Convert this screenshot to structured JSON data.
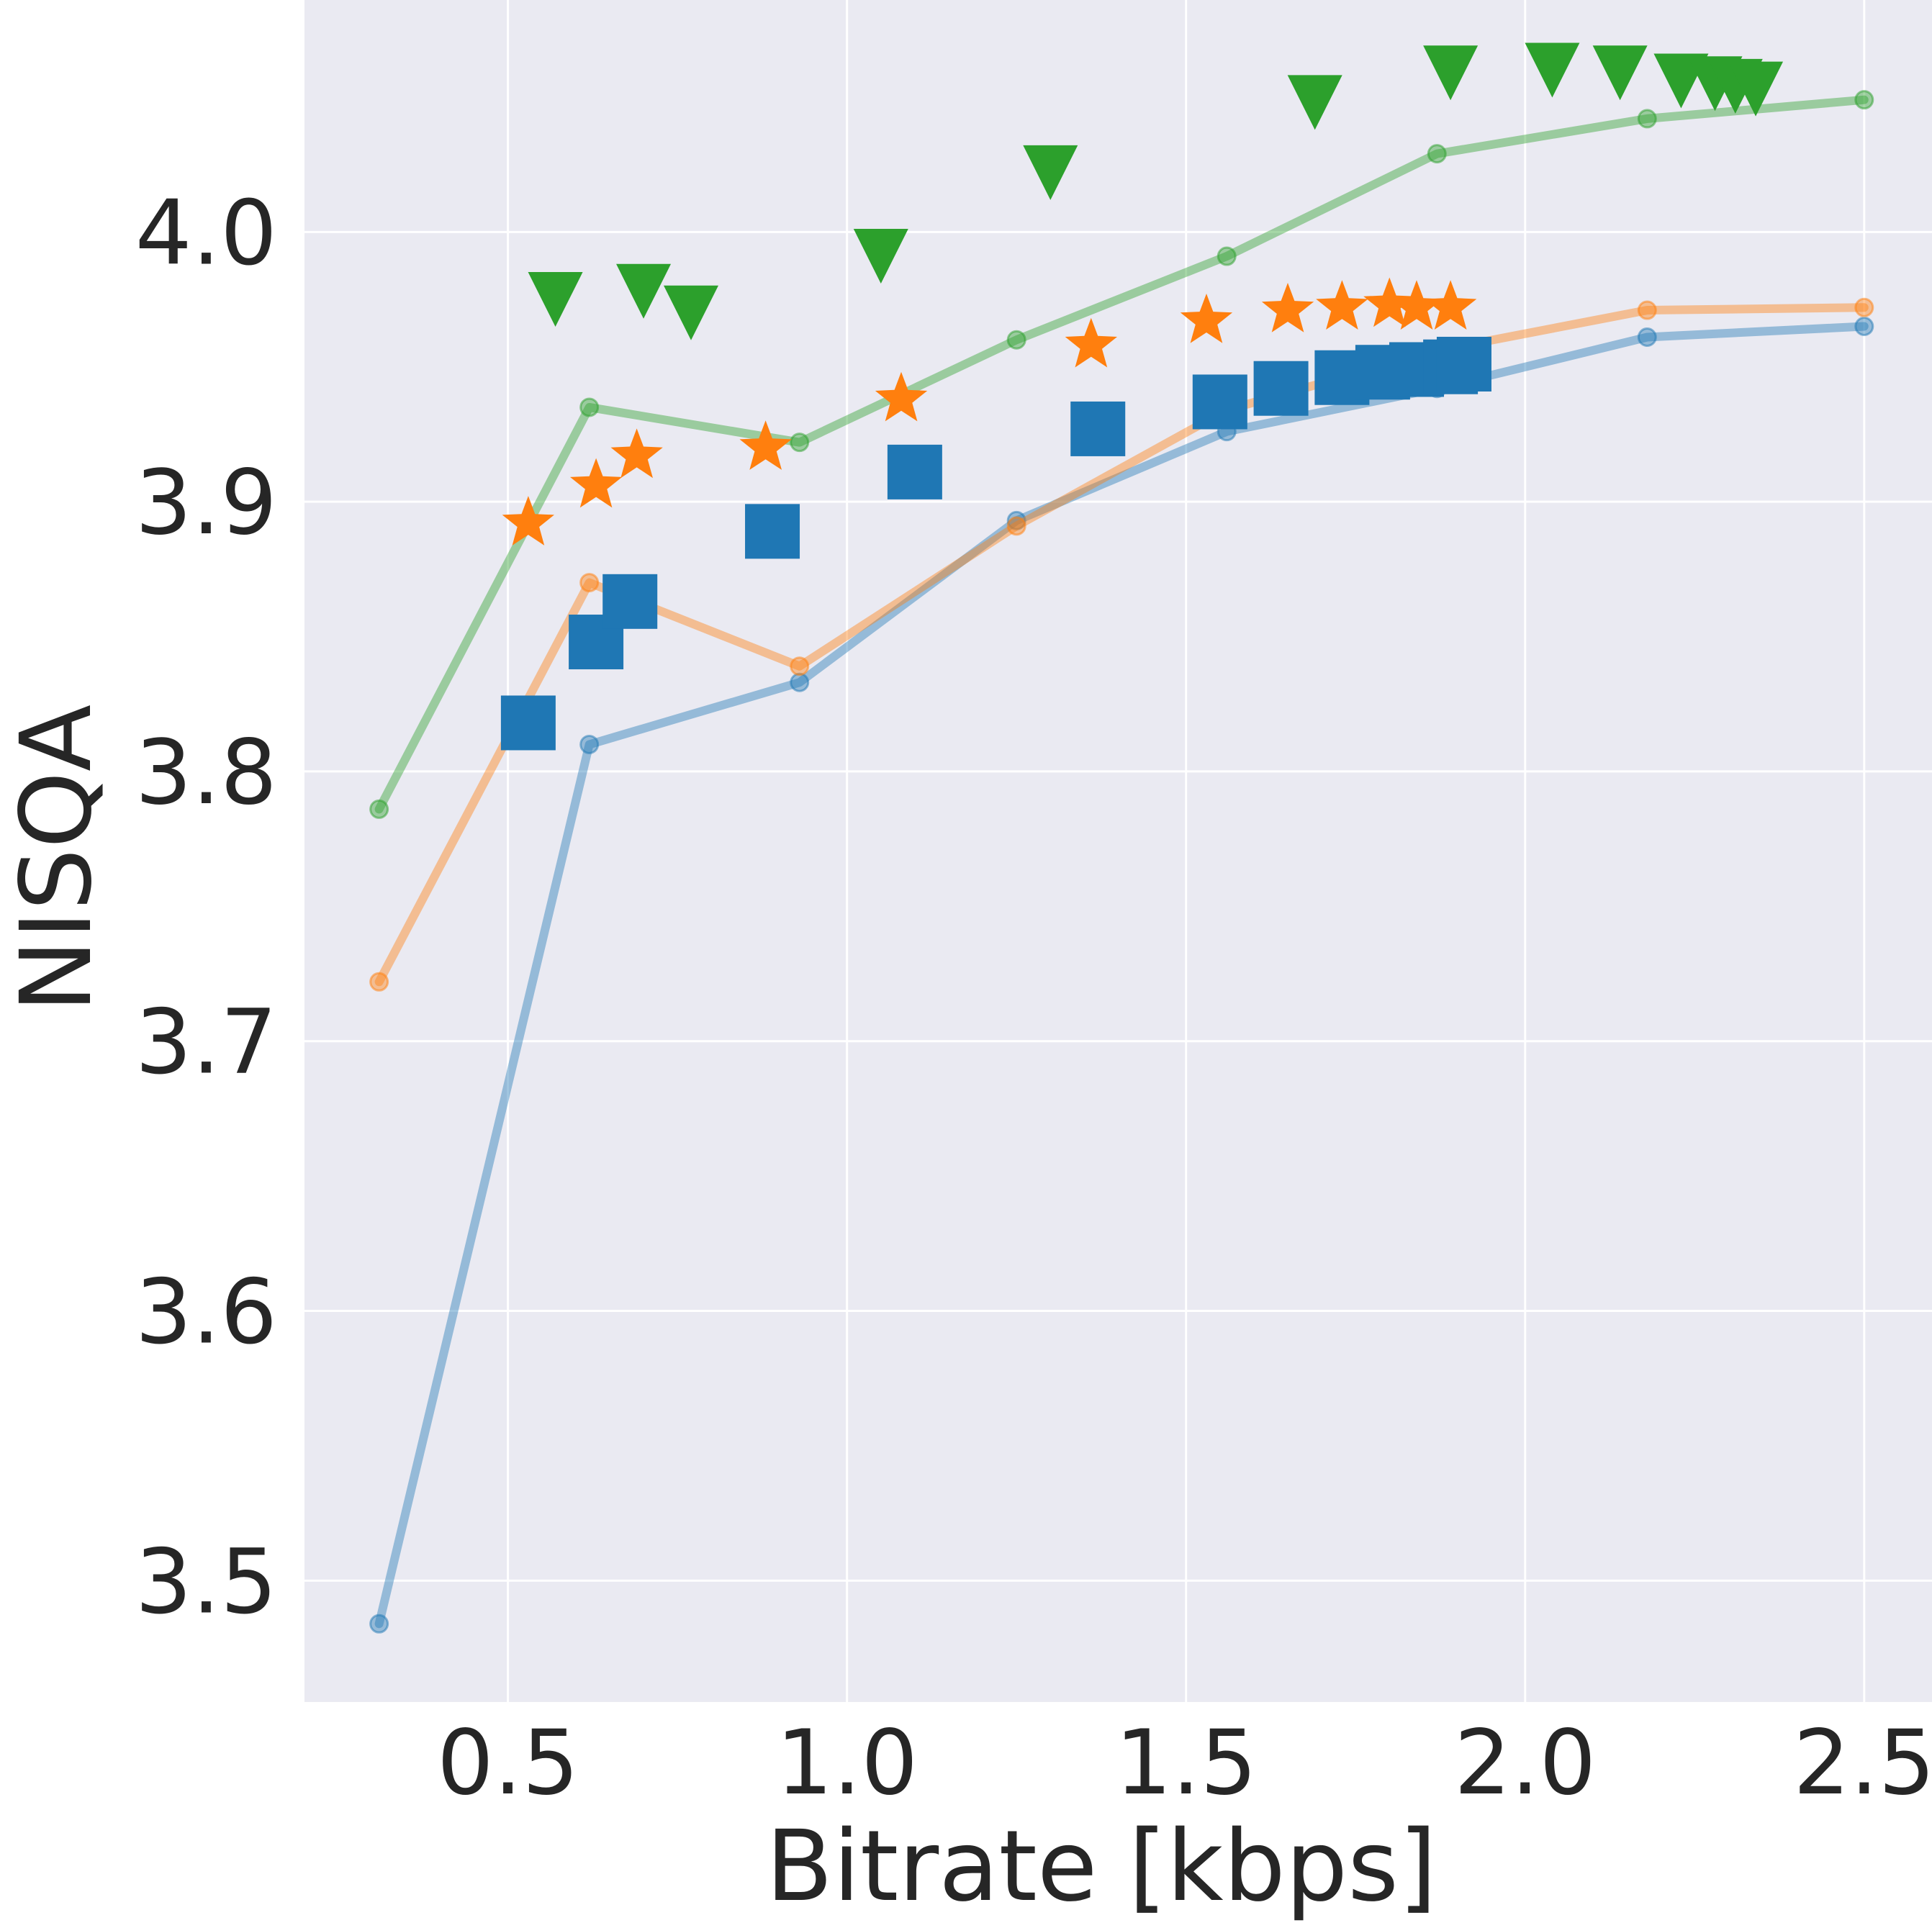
{
  "chart_data": {
    "type": "line",
    "title": "",
    "xlabel": "Bitrate [kbps]",
    "ylabel": "NISQA",
    "xlim": [
      0.2,
      2.6
    ],
    "ylim": [
      3.455,
      4.086
    ],
    "xticks": [
      0.5,
      1.0,
      1.5,
      2.0,
      2.5
    ],
    "xtick_labels": [
      "0.5",
      "1.0",
      "1.5",
      "2.0",
      "2.5"
    ],
    "yticks": [
      3.5,
      3.6,
      3.7,
      3.8,
      3.9,
      4.0
    ],
    "ytick_labels": [
      "3.5",
      "3.6",
      "3.7",
      "3.8",
      "3.9",
      "4.0"
    ],
    "grid": true,
    "legend": "none",
    "series": [
      {
        "kind": "line",
        "color": "#1f77b4",
        "marker": "circle",
        "points": [
          [
            0.31,
            3.484
          ],
          [
            0.62,
            3.81
          ],
          [
            0.93,
            3.833
          ],
          [
            1.25,
            3.893
          ],
          [
            1.56,
            3.926
          ],
          [
            1.87,
            3.942
          ],
          [
            2.18,
            3.961
          ],
          [
            2.5,
            3.965
          ]
        ]
      },
      {
        "kind": "line",
        "color": "#ff7f0e",
        "marker": "circle",
        "points": [
          [
            0.31,
            3.722
          ],
          [
            0.62,
            3.87
          ],
          [
            0.93,
            3.839
          ],
          [
            1.25,
            3.891
          ],
          [
            1.56,
            3.934
          ],
          [
            1.87,
            3.956
          ],
          [
            2.18,
            3.971
          ],
          [
            2.5,
            3.972
          ]
        ]
      },
      {
        "kind": "line",
        "color": "#2ca02c",
        "marker": "circle",
        "points": [
          [
            0.31,
            3.786
          ],
          [
            0.62,
            3.935
          ],
          [
            0.93,
            3.922
          ],
          [
            1.25,
            3.96
          ],
          [
            1.56,
            3.991
          ],
          [
            1.87,
            4.029
          ],
          [
            2.18,
            4.042
          ],
          [
            2.5,
            4.049
          ]
        ]
      },
      {
        "kind": "scatter",
        "color": "#1f77b4",
        "marker": "square",
        "points": [
          [
            0.53,
            3.818
          ],
          [
            0.63,
            3.848
          ],
          [
            0.68,
            3.863
          ],
          [
            0.89,
            3.889
          ],
          [
            1.1,
            3.911
          ],
          [
            1.37,
            3.927
          ],
          [
            1.55,
            3.937
          ],
          [
            1.64,
            3.942
          ],
          [
            1.73,
            3.946
          ],
          [
            1.79,
            3.948
          ],
          [
            1.84,
            3.949
          ],
          [
            1.89,
            3.95
          ],
          [
            1.91,
            3.951
          ]
        ]
      },
      {
        "kind": "scatter",
        "color": "#ff7f0e",
        "marker": "star",
        "points": [
          [
            0.53,
            3.892
          ],
          [
            0.63,
            3.906
          ],
          [
            0.69,
            3.917
          ],
          [
            0.88,
            3.92
          ],
          [
            1.08,
            3.938
          ],
          [
            1.36,
            3.958
          ],
          [
            1.53,
            3.967
          ],
          [
            1.65,
            3.971
          ],
          [
            1.73,
            3.972
          ],
          [
            1.8,
            3.973
          ],
          [
            1.84,
            3.972
          ],
          [
            1.89,
            3.972
          ]
        ]
      },
      {
        "kind": "scatter",
        "color": "#2ca02c",
        "marker": "triangle-down",
        "points": [
          [
            0.57,
            3.975
          ],
          [
            0.7,
            3.978
          ],
          [
            0.77,
            3.97
          ],
          [
            1.05,
            3.991
          ],
          [
            1.3,
            4.022
          ],
          [
            1.69,
            4.048
          ],
          [
            1.89,
            4.059
          ],
          [
            2.04,
            4.06
          ],
          [
            2.14,
            4.059
          ],
          [
            2.23,
            4.056
          ],
          [
            2.28,
            4.055
          ],
          [
            2.31,
            4.054
          ],
          [
            2.34,
            4.053
          ]
        ]
      }
    ]
  }
}
